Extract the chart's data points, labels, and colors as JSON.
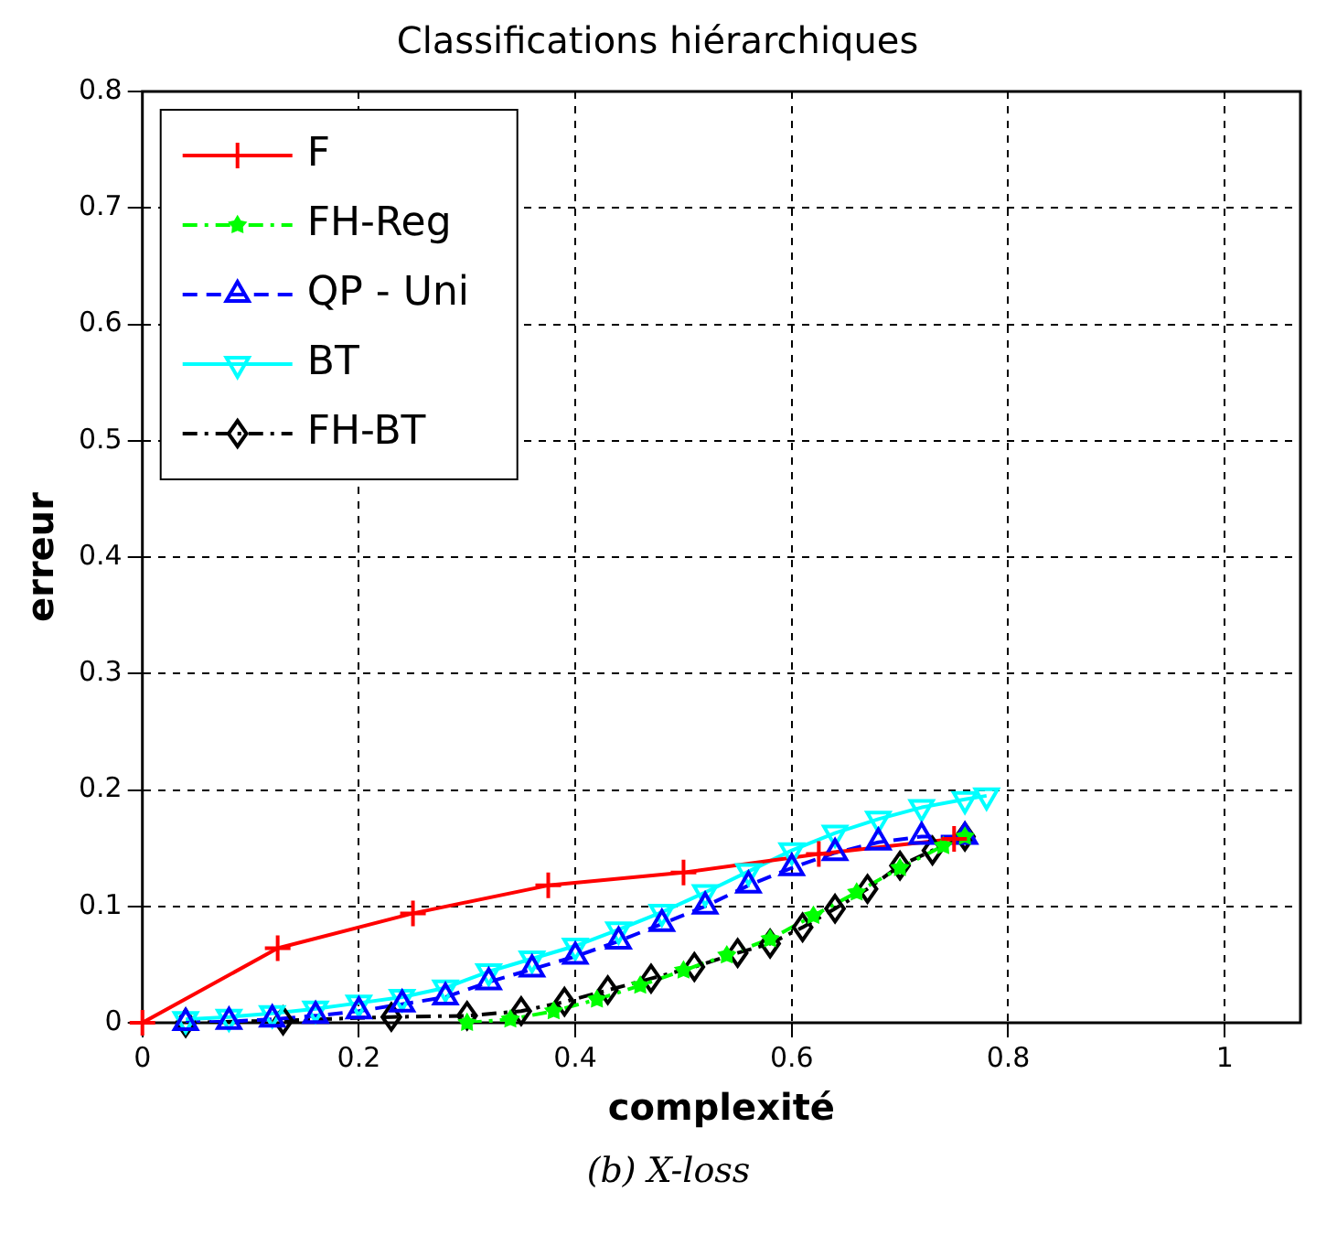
{
  "chart_data": {
    "type": "line",
    "title": "Classifications hiérarchiques",
    "xlabel": "complexité",
    "ylabel": "erreur",
    "xlim": [
      0,
      1.07
    ],
    "xticks": [
      0,
      0.2,
      0.4,
      0.6,
      0.8,
      1
    ],
    "ylim": [
      0,
      0.8
    ],
    "yticks": [
      0,
      0.1,
      0.2,
      0.3,
      0.4,
      0.5,
      0.6,
      0.7,
      0.8
    ],
    "grid": true,
    "legend": "top left",
    "annotations": [
      "(b) X-loss"
    ],
    "series": [
      {
        "name": "F",
        "color": "#ff0000",
        "marker": "cross",
        "line_style": "solid",
        "x": [
          0,
          0.125,
          0.25,
          0.375,
          0.5,
          0.625,
          0.75
        ],
        "values": [
          0,
          0.064,
          0.094,
          0.118,
          0.129,
          0.145,
          0.158
        ]
      },
      {
        "name": "FH-Reg",
        "color": "#00ff00",
        "marker": "star",
        "line_style": "dashdot",
        "x": [
          0.3,
          0.34,
          0.38,
          0.42,
          0.46,
          0.5,
          0.54,
          0.58,
          0.62,
          0.66,
          0.7,
          0.74,
          0.76
        ],
        "values": [
          0,
          0.003,
          0.01,
          0.02,
          0.032,
          0.045,
          0.058,
          0.072,
          0.092,
          0.112,
          0.133,
          0.152,
          0.16
        ]
      },
      {
        "name": "QP - Uni",
        "color": "#0000ff",
        "marker": "triangle",
        "line_style": "dashed",
        "x": [
          0.04,
          0.08,
          0.12,
          0.16,
          0.2,
          0.24,
          0.28,
          0.32,
          0.36,
          0.4,
          0.44,
          0.48,
          0.52,
          0.56,
          0.6,
          0.64,
          0.68,
          0.72,
          0.76
        ],
        "values": [
          0,
          0.001,
          0.003,
          0.006,
          0.01,
          0.016,
          0.022,
          0.035,
          0.046,
          0.057,
          0.07,
          0.085,
          0.1,
          0.118,
          0.133,
          0.146,
          0.155,
          0.16,
          0.16
        ]
      },
      {
        "name": "BT",
        "color": "#00ffff",
        "marker": "triangle-down",
        "line_style": "solid",
        "x": [
          0.04,
          0.08,
          0.12,
          0.16,
          0.2,
          0.24,
          0.28,
          0.32,
          0.36,
          0.4,
          0.44,
          0.48,
          0.52,
          0.56,
          0.6,
          0.64,
          0.68,
          0.72,
          0.76,
          0.78
        ],
        "values": [
          0.003,
          0.005,
          0.008,
          0.012,
          0.017,
          0.022,
          0.03,
          0.044,
          0.055,
          0.066,
          0.08,
          0.095,
          0.112,
          0.13,
          0.148,
          0.163,
          0.175,
          0.185,
          0.192,
          0.195
        ]
      },
      {
        "name": "FH-BT",
        "color": "#000000",
        "marker": "diamond",
        "line_style": "dashdot",
        "x": [
          0.04,
          0.13,
          0.23,
          0.3,
          0.35,
          0.39,
          0.43,
          0.47,
          0.51,
          0.55,
          0.58,
          0.61,
          0.64,
          0.67,
          0.7,
          0.73,
          0.76
        ],
        "values": [
          0,
          0.002,
          0.005,
          0.006,
          0.01,
          0.018,
          0.028,
          0.038,
          0.048,
          0.06,
          0.068,
          0.082,
          0.098,
          0.115,
          0.135,
          0.148,
          0.16
        ]
      }
    ]
  }
}
